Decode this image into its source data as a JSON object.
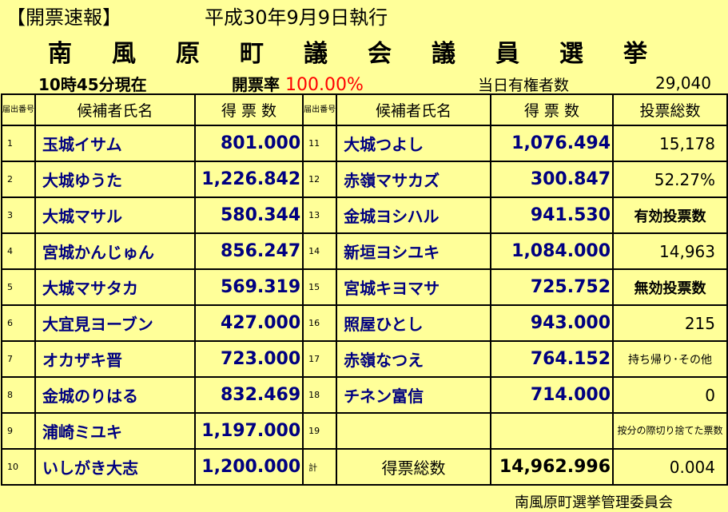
{
  "header": {
    "bulletin": "【開票速報】",
    "date": "平成30年9月9日執行",
    "title_chars": [
      "南",
      "風",
      "原",
      "町",
      "議",
      "会",
      "議",
      "員",
      "選",
      "挙"
    ],
    "time_status": "10時45分現在",
    "rate_label": "開票率",
    "rate_value": "100.00%",
    "eligible_label": "当日有権者数",
    "eligible_value": "29,040"
  },
  "table": {
    "col_no": "届出番号",
    "col_name": "候補者氏名",
    "col_votes": "得 票 数",
    "col_total": "投票総数",
    "left_rows": [
      {
        "no": "1",
        "name": "玉城イサム",
        "votes": "801.000"
      },
      {
        "no": "2",
        "name": "大城ゆうた",
        "votes": "1,226.842"
      },
      {
        "no": "3",
        "name": "大城マサル",
        "votes": "580.344"
      },
      {
        "no": "4",
        "name": "宮城かんじゅん",
        "votes": "856.247"
      },
      {
        "no": "5",
        "name": "大城マサタカ",
        "votes": "569.319"
      },
      {
        "no": "6",
        "name": "大宜見ヨーブン",
        "votes": "427.000"
      },
      {
        "no": "7",
        "name": "オカザキ晋",
        "votes": "723.000"
      },
      {
        "no": "8",
        "name": "金城のりはる",
        "votes": "832.469"
      },
      {
        "no": "9",
        "name": "浦崎ミユキ",
        "votes": "1,197.000"
      },
      {
        "no": "10",
        "name": "いしがき大志",
        "votes": "1,200.000"
      }
    ],
    "right_rows": [
      {
        "no": "11",
        "name": "大城つよし",
        "votes": "1,076.494"
      },
      {
        "no": "12",
        "name": "赤嶺マサカズ",
        "votes": "300.847"
      },
      {
        "no": "13",
        "name": "金城ヨシハル",
        "votes": "941.530"
      },
      {
        "no": "14",
        "name": "新垣ヨシユキ",
        "votes": "1,084.000"
      },
      {
        "no": "15",
        "name": "宮城キヨマサ",
        "votes": "725.752"
      },
      {
        "no": "16",
        "name": "照屋ひとし",
        "votes": "943.000"
      },
      {
        "no": "17",
        "name": "赤嶺なつえ",
        "votes": "764.152"
      },
      {
        "no": "18",
        "name": "チネン富信",
        "votes": "714.000"
      },
      {
        "no": "19",
        "name": "",
        "votes": ""
      },
      {
        "no": "計",
        "name": "得票総数",
        "votes": "14,962.996"
      }
    ],
    "side": {
      "total_votes": "15,178",
      "turnout": "52.27%",
      "valid_label": "有効投票数",
      "valid_value": "14,963",
      "invalid_label": "無効投票数",
      "invalid_value": "215",
      "other_label": "持ち帰り･その他",
      "other_value": "0",
      "rounding_label": "按分の際切り捨てた票数",
      "rounding_value": "0.004"
    }
  },
  "footer": "南風原町選挙管理委員会"
}
